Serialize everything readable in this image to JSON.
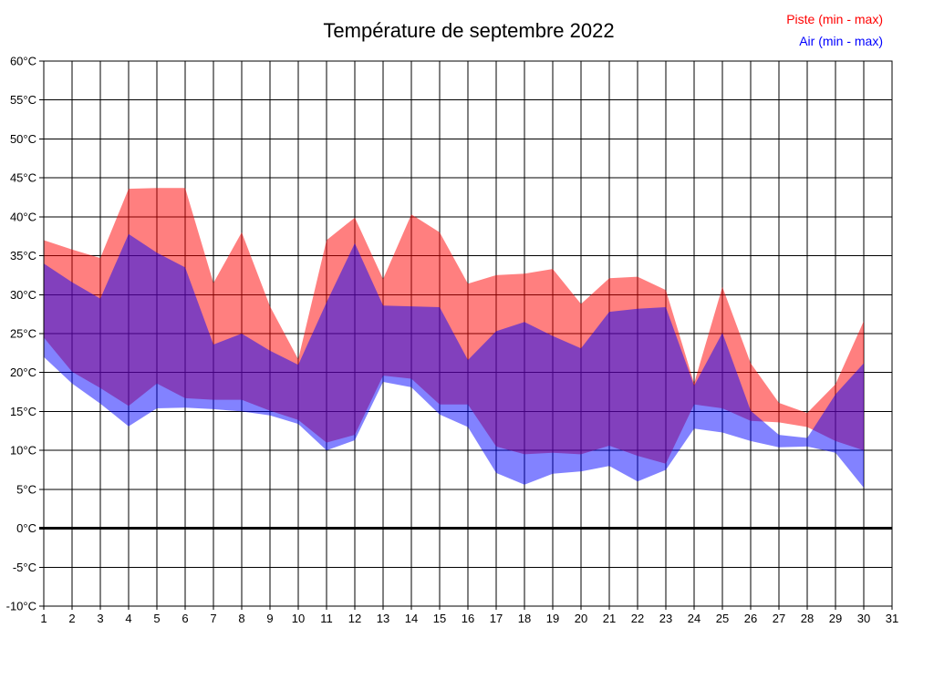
{
  "title": "Température de septembre 2022",
  "legend": {
    "position": "top-right",
    "piste": {
      "label": "Piste (min - max)",
      "color": "#ff0000"
    },
    "air": {
      "label": "Air (min - max)",
      "color": "#0000ff"
    }
  },
  "colors": {
    "piste_band_fill": "#ff0000",
    "piste_band_opacity": 0.5,
    "piste_band_rendered": "#ff8080",
    "air_band_fill": "#0000ff",
    "air_band_opacity": 0.49,
    "air_band_rendered": "#8282ff",
    "overlap_rendered": "#8241be",
    "grid": "#000000",
    "zero_line": "#000000"
  },
  "chart_data": {
    "type": "area",
    "title": "Température de septembre 2022",
    "xlabel": "",
    "ylabel": "",
    "xlim": [
      1,
      31
    ],
    "ylim": [
      -10,
      60
    ],
    "grid": true,
    "zero_line_thick": true,
    "legend_position": "top-right",
    "xtick_labels": [
      "1",
      "2",
      "3",
      "4",
      "5",
      "6",
      "7",
      "8",
      "9",
      "10",
      "11",
      "12",
      "13",
      "14",
      "15",
      "16",
      "17",
      "18",
      "19",
      "20",
      "21",
      "22",
      "23",
      "24",
      "25",
      "26",
      "27",
      "28",
      "29",
      "30",
      "31"
    ],
    "ytick_labels": [
      "60°C",
      "55°C",
      "50°C",
      "45°C",
      "40°C",
      "35°C",
      "30°C",
      "25°C",
      "20°C",
      "15°C",
      "10°C",
      "5°C",
      "0°C",
      "-5°C",
      "-10°C"
    ],
    "x": [
      1,
      2,
      3,
      4,
      5,
      6,
      7,
      8,
      9,
      10,
      11,
      12,
      13,
      14,
      15,
      16,
      17,
      18,
      19,
      20,
      21,
      22,
      23,
      24,
      25,
      26,
      27,
      28,
      29,
      30
    ],
    "series": [
      {
        "name": "Piste (min - max)",
        "max": [
          37.0,
          35.8,
          34.7,
          43.6,
          43.7,
          43.7,
          31.5,
          38.0,
          28.5,
          21.7,
          37.0,
          39.9,
          32.0,
          40.3,
          38.0,
          31.4,
          32.5,
          32.7,
          33.3,
          28.8,
          32.1,
          32.3,
          30.6,
          18.6,
          31.0,
          21.2,
          16.1,
          14.8,
          18.5,
          26.6
        ],
        "min": [
          24.5,
          20.1,
          18.0,
          15.7,
          18.6,
          16.7,
          16.5,
          16.5,
          15.1,
          13.9,
          11.0,
          12.0,
          19.6,
          19.2,
          15.9,
          15.9,
          10.5,
          9.5,
          9.7,
          9.5,
          10.6,
          9.3,
          8.3,
          15.9,
          15.4,
          13.8,
          13.6,
          13.0,
          11.2,
          10.0
        ]
      },
      {
        "name": "Air (min - max)",
        "max": [
          34.0,
          31.6,
          29.5,
          37.8,
          35.4,
          33.5,
          23.6,
          25.0,
          22.8,
          21.0,
          29.0,
          36.6,
          28.6,
          28.5,
          28.4,
          21.6,
          25.3,
          26.5,
          24.7,
          23.1,
          27.8,
          28.2,
          28.4,
          18.3,
          25.1,
          15.1,
          12.0,
          11.6,
          17.2,
          21.2
        ],
        "min": [
          22.0,
          18.6,
          16.0,
          13.1,
          15.4,
          15.5,
          15.3,
          15.0,
          14.5,
          13.4,
          10.0,
          11.3,
          18.8,
          18.1,
          14.6,
          13.0,
          7.1,
          5.6,
          7.0,
          7.3,
          8.0,
          6.0,
          7.5,
          12.8,
          12.3,
          11.2,
          10.4,
          10.5,
          9.7,
          5.2
        ]
      }
    ]
  }
}
